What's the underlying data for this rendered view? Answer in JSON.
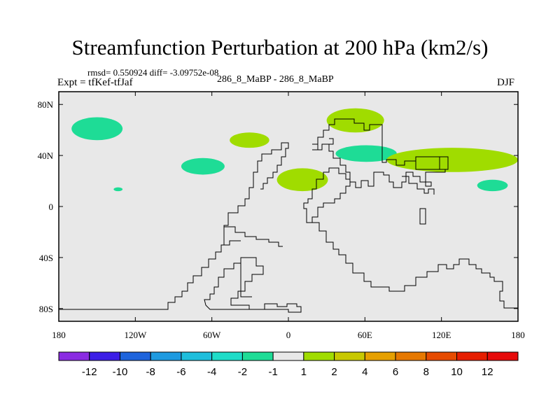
{
  "figure": {
    "title": "Streamfunction Perturbation at 200 hPa (km2/s)",
    "stats": "rmsd= 0.550924 diff= -3.09752e-08",
    "experiment": "Expt = tfKef-tfJaf",
    "case": "286_8_MaBP - 286_8_MaBP",
    "season": "DJF"
  },
  "axes": {
    "y_ticks": [
      "80N",
      "40N",
      "0",
      "40S",
      "80S"
    ],
    "x_ticks": [
      "180",
      "120W",
      "60W",
      "0",
      "60E",
      "120E",
      "180"
    ]
  },
  "map": {
    "background_color": "#e8e8e8",
    "land_outline_color": "#000000"
  },
  "chart_data": {
    "type": "heatmap",
    "title": "Streamfunction Perturbation at 200 hPa (km2/s)",
    "x_range": [
      -180,
      180
    ],
    "y_range": [
      -90,
      90
    ],
    "colorbar": {
      "labels": [
        "-12",
        "-10",
        "-8",
        "-6",
        "-4",
        "-2",
        "-1",
        "1",
        "2",
        "4",
        "6",
        "8",
        "10",
        "12"
      ],
      "colors": [
        "#8a2be2",
        "#3c1ee6",
        "#1e64dc",
        "#1e9ae0",
        "#1ebedc",
        "#1edcc8",
        "#1edc96",
        "#e8e8e8",
        "#a0dc00",
        "#c8c800",
        "#e6a000",
        "#e67800",
        "#e64b00",
        "#e61e00",
        "#e60a0a"
      ]
    },
    "regions": [
      {
        "level": "-2 to -1",
        "color": "#1edc96",
        "lon": [
          -170,
          -130
        ],
        "lat": [
          52,
          70
        ]
      },
      {
        "level": "-2 to -1",
        "color": "#1edc96",
        "lon": [
          -84,
          -50
        ],
        "lat": [
          25,
          38
        ]
      },
      {
        "level": "-2 to -1",
        "color": "#1edc96",
        "lon": [
          -137,
          -130
        ],
        "lat": [
          12,
          15
        ]
      },
      {
        "level": "-2 to -1",
        "color": "#1edc96",
        "lon": [
          37,
          85
        ],
        "lat": [
          35,
          48
        ]
      },
      {
        "level": "-2 to -1",
        "color": "#1edc96",
        "lon": [
          148,
          172
        ],
        "lat": [
          12,
          21
        ]
      },
      {
        "level": "1 to 2",
        "color": "#a0dc00",
        "lon": [
          -46,
          -15
        ],
        "lat": [
          46,
          58
        ]
      },
      {
        "level": "1 to 2",
        "color": "#a0dc00",
        "lon": [
          -9,
          31
        ],
        "lat": [
          12,
          30
        ]
      },
      {
        "level": "1 to 2",
        "color": "#a0dc00",
        "lon": [
          30,
          75
        ],
        "lat": [
          58,
          77
        ]
      },
      {
        "level": "1 to 2",
        "color": "#a0dc00",
        "lon": [
          77,
          180
        ],
        "lat": [
          27,
          46
        ]
      }
    ]
  }
}
